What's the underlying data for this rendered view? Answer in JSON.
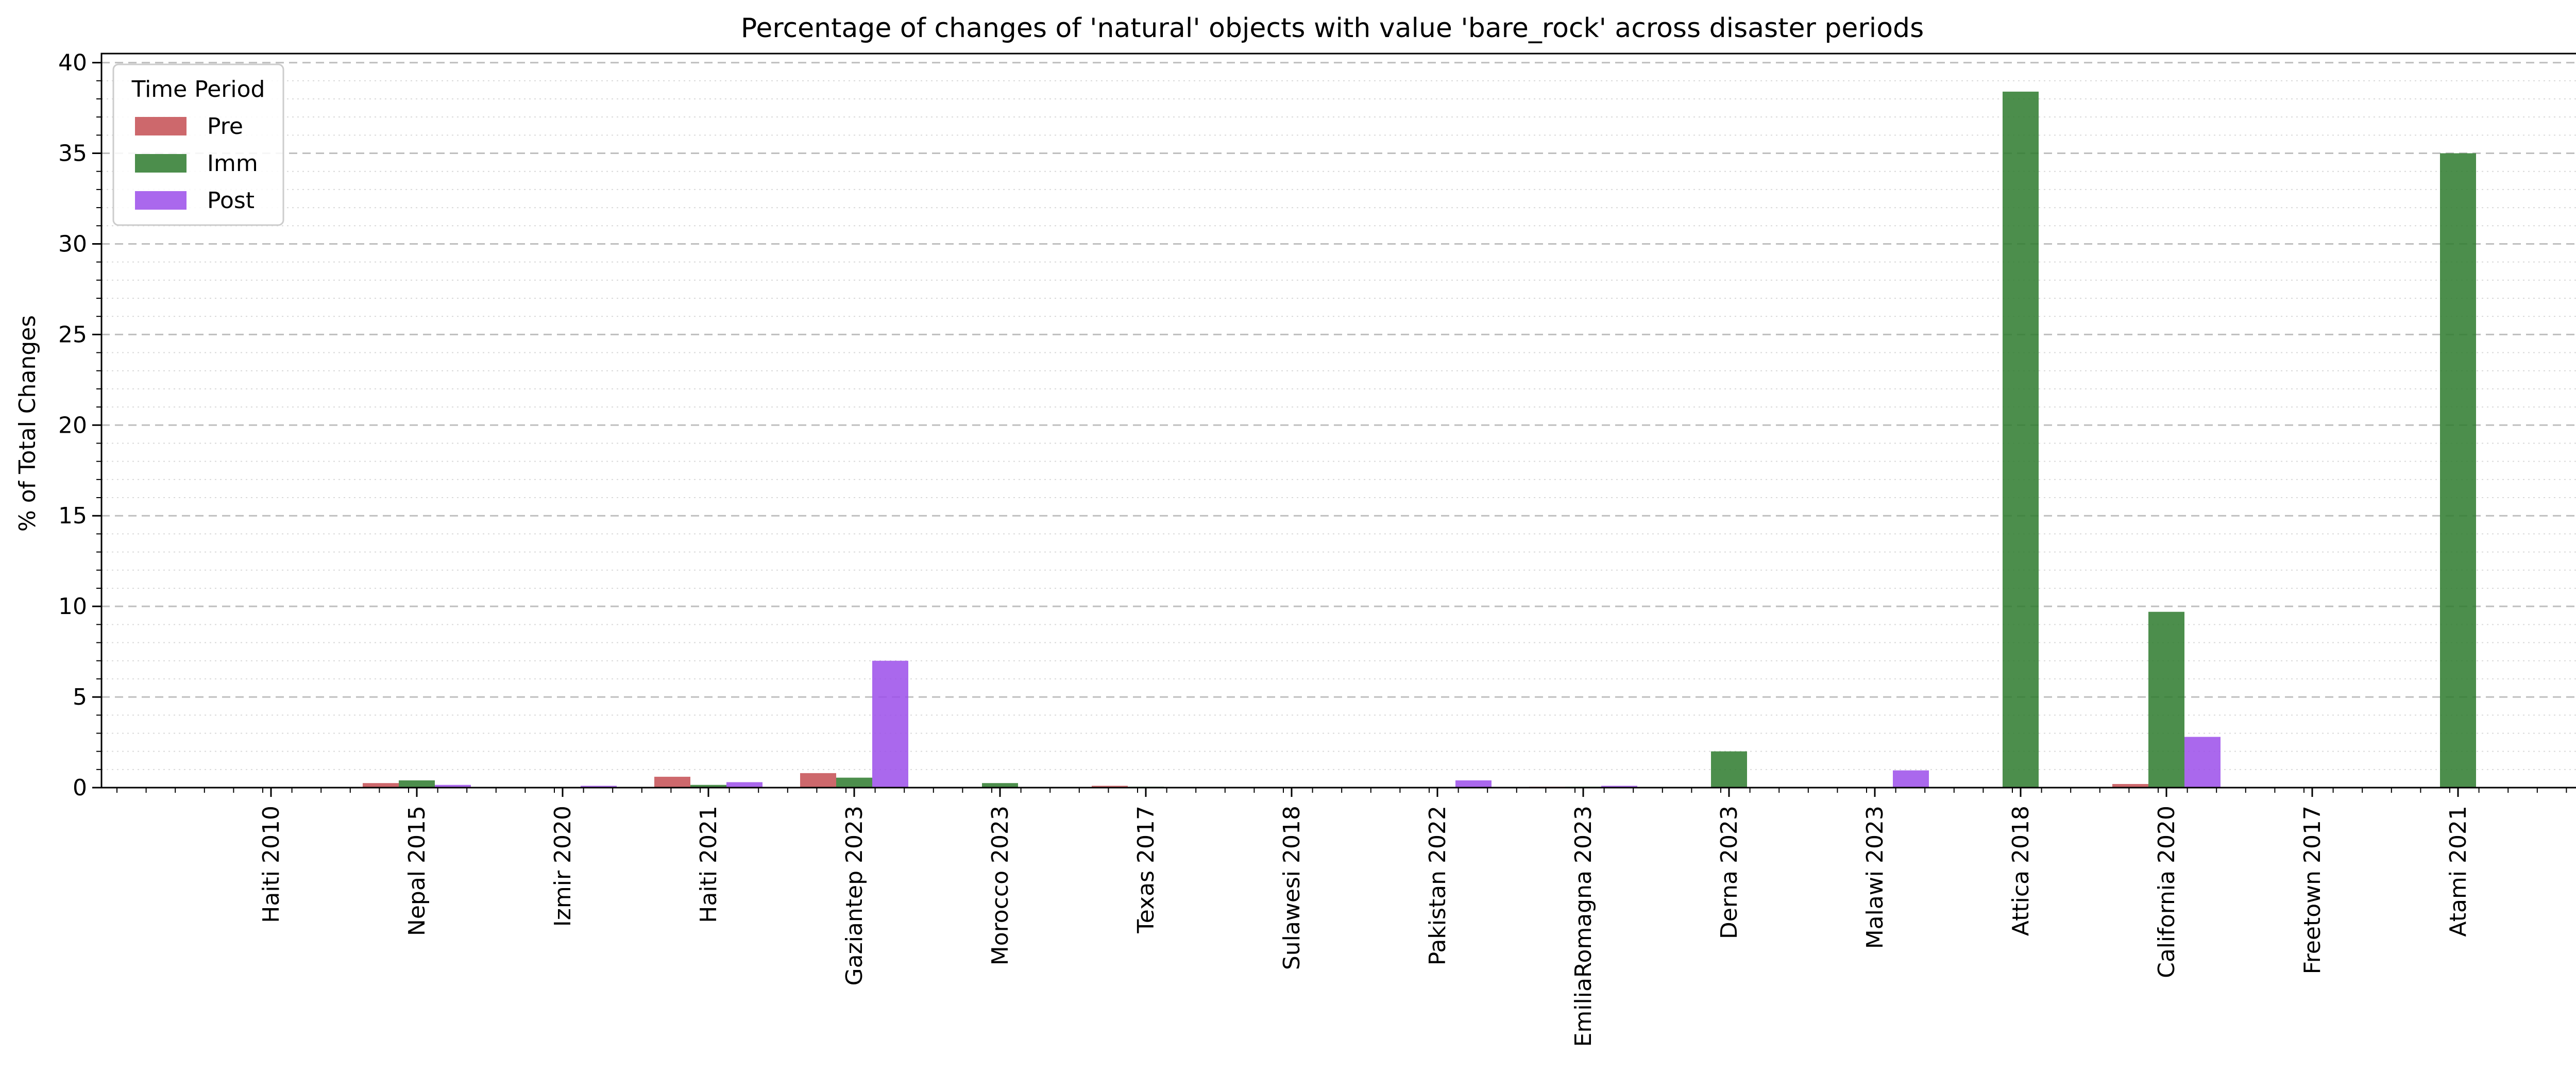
{
  "chart_data": {
    "type": "bar",
    "title": "Percentage of changes of 'natural' objects with value 'bare_rock' across disaster periods",
    "xlabel": "",
    "ylabel": "% of Total Changes",
    "ylim": [
      0,
      40
    ],
    "yticks": [
      "0",
      "5",
      "10",
      "15",
      "20",
      "25",
      "30",
      "35",
      "40"
    ],
    "grid": true,
    "legend": {
      "title": "Time Period",
      "position": "top-left"
    },
    "categories": [
      "Haiti 2010",
      "Nepal 2015",
      "Izmir 2020",
      "Haiti 2021",
      "Gaziantep 2023",
      "Morocco 2023",
      "Texas 2017",
      "Sulawesi 2018",
      "Pakistan 2022",
      "EmiliaRomagna 2023",
      "Derna 2023",
      "Malawi 2023",
      "Attica 2018",
      "California 2020",
      "Freetown 2017",
      "Atami 2021"
    ],
    "series": [
      {
        "name": "Pre",
        "color": "#c44e52",
        "values": [
          0,
          0.25,
          0,
          0.6,
          0.8,
          0,
          0.1,
          0,
          0,
          0.05,
          0,
          0,
          0,
          0.2,
          0,
          0
        ]
      },
      {
        "name": "Imm",
        "color": "#2d7a2d",
        "values": [
          0,
          0.4,
          0,
          0.15,
          0.55,
          0.25,
          0.05,
          0,
          0,
          0.05,
          2.0,
          0,
          38.4,
          9.7,
          0,
          35.0
        ]
      },
      {
        "name": "Post",
        "color": "#9b4dea",
        "values": [
          0,
          0.15,
          0.1,
          0.3,
          7.0,
          0,
          0,
          0,
          0.4,
          0.1,
          0,
          0.95,
          0,
          2.8,
          0,
          0
        ]
      }
    ]
  }
}
